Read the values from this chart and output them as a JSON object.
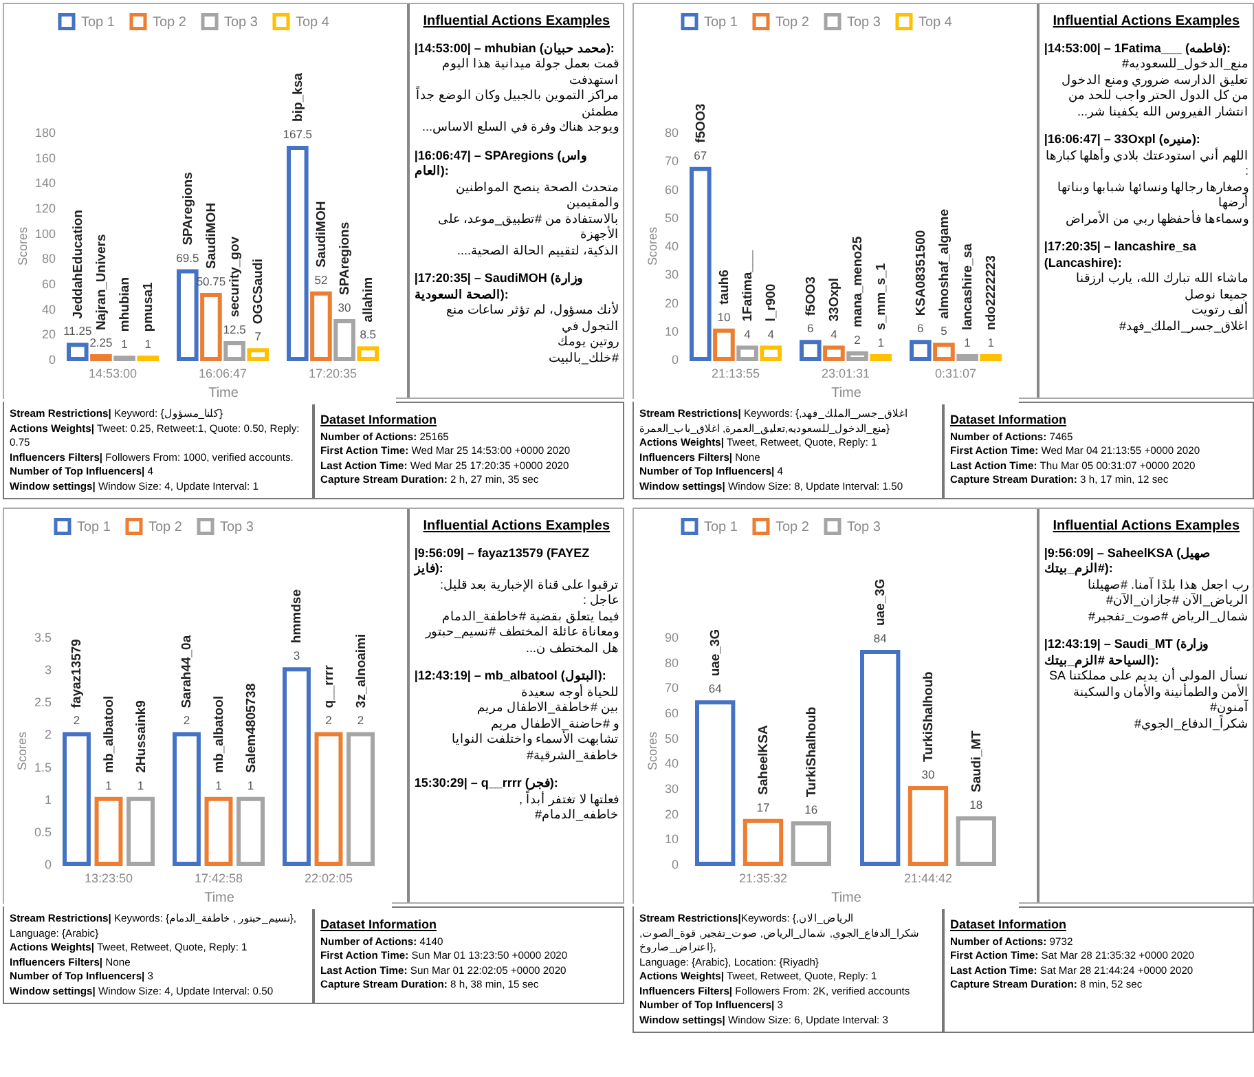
{
  "chart_data": [
    {
      "type": "bar",
      "categories": [
        "14:53:00",
        "16:06:47",
        "17:20:35"
      ],
      "xlabel": "Time",
      "ylabel": "Scores",
      "ylim": [
        0,
        180
      ],
      "yticks": [
        0,
        20,
        40,
        60,
        80,
        100,
        120,
        140,
        160,
        180
      ],
      "legend": "top",
      "data_labels": true,
      "series": [
        {
          "name": "Top 1",
          "color": "#4472c4",
          "values": [
            11.25,
            69.5,
            167.5
          ]
        },
        {
          "name": "Top 2",
          "color": "#ed7d31",
          "values": [
            2.25,
            50.75,
            52
          ]
        },
        {
          "name": "Top 3",
          "color": "#a5a5a5",
          "values": [
            1,
            12.5,
            30
          ]
        },
        {
          "name": "Top 4",
          "color": "#ffc000",
          "values": [
            1,
            7,
            8.5
          ]
        }
      ],
      "annotations": [
        "JeddahEducation",
        "Najran_Univers",
        "mhubian",
        "pmusa1",
        "SPAregions",
        "SaudiMOH",
        "security_gov",
        "OGCSaudi",
        "bip_ksa",
        "SaudiMOH",
        "SPAregions",
        "allahim"
      ]
    },
    {
      "type": "other",
      "title": "Influential Actions Examples",
      "annotations": [
        "|14:53:00| – mhubian (محمد حبيان):\nقمت بعمل جولة ميدانية هذا اليوم استهدفت\nمراكز التموين بالجبيل وكان الوضع جداً مطمئن\nويوجد هناك وفرة في السلع الاساس...",
        "|16:06:47| – SPAregions (واس العام):\nمتحدث الصحة ينصح المواطنين والمقيمين\nبالاستفادة من #تطبيق_موعد، على الأجهزة\nالذكية، لتقييم الحالة الصحية....",
        "|17:20:35| – SaudiMOH (وزارة الصحة السعودية):\nلأنك مسؤول، لم تؤثر ساعات منع التجول في\nروتين يومك\n#خلك_بالبيت"
      ]
    },
    {
      "type": "other",
      "annotations": [
        "Stream Restrictions| Keyword: {كلنا_مسؤول}",
        "Actions Weights| Tweet: 0.25, Retweet:1, Quote: 0.50, Reply: 0.75",
        "Influencers Filters| Followers From: 1000, verified accounts.",
        "Number of Top Influencers| 4",
        "Window settings| Window Size: 4, Update Interval: 1"
      ]
    },
    {
      "type": "other",
      "title": "Dataset Information",
      "annotations": [
        "Number of Actions: 25165",
        "First Action Time: Wed Mar 25 14:53:00 +0000 2020",
        "Last Action Time: Wed Mar 25 17:20:35 +0000 2020",
        "Capture Stream Duration: 2 h, 27 min, 35 sec"
      ]
    },
    {
      "type": "bar",
      "categories": [
        "21:13:55",
        "23:01:31",
        "0:31:07"
      ],
      "xlabel": "Time",
      "ylabel": "Scores",
      "ylim": [
        0,
        80
      ],
      "yticks": [
        0,
        10,
        20,
        30,
        40,
        50,
        60,
        70,
        80
      ],
      "legend": "top",
      "data_labels": true,
      "series": [
        {
          "name": "Top 1",
          "color": "#4472c4",
          "values": [
            67,
            6,
            6
          ]
        },
        {
          "name": "Top 2",
          "color": "#ed7d31",
          "values": [
            10,
            4,
            5
          ]
        },
        {
          "name": "Top 3",
          "color": "#a5a5a5",
          "values": [
            4,
            2,
            1
          ]
        },
        {
          "name": "Top 4",
          "color": "#ffc000",
          "values": [
            4,
            1,
            1
          ]
        }
      ],
      "annotations": [
        "f5OO3",
        "tauh6",
        "1Fatima___",
        "l_r900",
        "f5OO3",
        "33Oxpl",
        "mana_meno25",
        "s_mm_s_1",
        "KSA08351500",
        "almoshaf_algame",
        "lancashire_sa",
        "ndo2222223"
      ]
    },
    {
      "type": "other",
      "title": "Influential Actions Examples",
      "annotations": [
        "|14:53:00| – 1Fatima___ (فاطمه):\nمنع_الدخول_للسعوديه#\nتعليق الدارسه ضروري ومنع الدخول\nمن كل الدول الحتر واجب للحد من\nانتشار الفيروس الله يكفينا شر...",
        "|16:06:47| – 33Oxpl (منيره):\nاللهم أني استودعتك بلادي وأهلها كبارها :\nوصغارها رجالها ونسائها شبابها وبناتها أرضها\nوسماءها فأحفظها ربي من الأمراض",
        "|17:20:35| – lancashire_sa (Lancashire):\nماشاء الله تبارك الله، يارب ارزقنا جميعا نوصل\nألف رتويت\nاغلاق_جسر_الملك_فهد#"
      ]
    },
    {
      "type": "other",
      "annotations": [
        "Stream Restrictions| Keywords: {اغلاق_جسر_الملك_فهد, منع_الدخول_للسعوديه,تعليق_العمرة, اغلاق_باب_العمرة}",
        "Actions Weights| Tweet, Retweet, Quote, Reply: 1",
        "Influencers Filters| None",
        "Number of Top Influencers| 4",
        "Window settings| Window Size: 8, Update Interval: 1.50"
      ]
    },
    {
      "type": "other",
      "title": "Dataset Information",
      "annotations": [
        "Number of Actions: 7465",
        "First Action Time: Wed Mar 04 21:13:55 +0000 2020",
        "Last Action Time: Thu Mar 05 00:31:07 +0000 2020",
        "Capture Stream Duration: 3 h, 17 min, 12 sec"
      ]
    },
    {
      "type": "bar",
      "categories": [
        "13:23:50",
        "17:42:58",
        "22:02:05"
      ],
      "xlabel": "Time",
      "ylabel": "Scores",
      "ylim": [
        0,
        3.5
      ],
      "yticks": [
        0,
        0.5,
        1,
        1.5,
        2,
        2.5,
        3,
        3.5
      ],
      "legend": "top",
      "data_labels": true,
      "series": [
        {
          "name": "Top 1",
          "color": "#4472c4",
          "values": [
            2,
            2,
            3
          ]
        },
        {
          "name": "Top 2",
          "color": "#ed7d31",
          "values": [
            1,
            1,
            2
          ]
        },
        {
          "name": "Top 3",
          "color": "#a5a5a5",
          "values": [
            1,
            1,
            2
          ]
        }
      ],
      "annotations": [
        "fayaz13579",
        "mb_albatool",
        "2Hussaink9",
        "Sarah44_0a",
        "mb_albatool",
        "Salem4805738",
        "hmmdse",
        "q__rrrr",
        "3z_alnoaimi"
      ]
    },
    {
      "type": "other",
      "title": "Influential Actions Examples",
      "annotations": [
        "|9:56:09| – fayaz13579 (FAYEZ فايز):\nترقبوا على قناة الإخبارية بعد قليل: عاجل :\nفيما يتعلق بقضية #خاطفة_الدمام\nومعاناة عائلة المختطف #نسيم_حبتور\nهل المختطف ن...",
        "|12:43:19| – mb_albatool (البتول):\nللحياة أوجه سعيدة\nبين #خاطفة_الاطفال مريم\nو #حاضنة_الاطفال مريم\nتشابهت الأسماء واختلفت النوايا\nخاطفة_الشرقية#",
        "15:30:29| – q__rrrr (فجر):\nفعلتها لا تغتفر أبداً ,\nخاطفه_الدمام#"
      ]
    },
    {
      "type": "other",
      "annotations": [
        "Stream Restrictions| Keywords: {نسيم_حبتور , خاطفة_الدمام},",
        "Language: {Arabic}",
        "Actions Weights| Tweet, Retweet, Quote, Reply: 1",
        "Influencers Filters| None",
        "Number of Top Influencers| 3",
        "Window settings| Window Size: 4, Update Interval: 0.50"
      ]
    },
    {
      "type": "other",
      "title": "Dataset Information",
      "annotations": [
        "Number of Actions: 4140",
        "First Action Time: Sun Mar 01 13:23:50 +0000 2020",
        "Last Action Time: Sun Mar 01 22:02:05 +0000 2020",
        "Capture Stream Duration: 8 h, 38 min, 15 sec"
      ]
    },
    {
      "type": "bar",
      "categories": [
        "21:35:32",
        "21:44:42"
      ],
      "xlabel": "Time",
      "ylabel": "Scores",
      "ylim": [
        0,
        90
      ],
      "yticks": [
        0,
        10,
        20,
        30,
        40,
        50,
        60,
        70,
        80,
        90
      ],
      "legend": "top",
      "data_labels": true,
      "series": [
        {
          "name": "Top 1",
          "color": "#4472c4",
          "values": [
            64,
            84
          ]
        },
        {
          "name": "Top 2",
          "color": "#ed7d31",
          "values": [
            17,
            30
          ]
        },
        {
          "name": "Top 3",
          "color": "#a5a5a5",
          "values": [
            16,
            18
          ]
        }
      ],
      "annotations": [
        "uae_3G",
        "SaheelKSA",
        "TurkiShalhoub",
        "uae_3G",
        "TurkiShalhoub",
        "Saudi_MT"
      ]
    },
    {
      "type": "other",
      "title": "Influential Actions Examples",
      "annotations": [
        "|9:56:09| – SaheelKSA (صهيل #الزم_بيتك):\nرب اجعل هذا بلدًا آمنا. #صهيلنا\nالرياض_الآن #جازان_الآن#\nشمال_الرياض #صوت_تفجير#",
        "|12:43:19| – Saudi_MT (وزارة السياحة #الزم_بيتك):\nنسأل المولى أن يديم على مملكتنا SA\nالأمن والطمأنينة والأمان والسكينة\nآمنون#\nشكراً_الدفاع_الجوي#"
      ]
    },
    {
      "type": "other",
      "annotations": [
        "Stream Restrictions|Keywords: {الرياض_الان, شكرا_الدفاع_الجوي, شمال_الرياض, صوت_تفجير, قوة_الصوت, اعتراض_صاروخ},",
        "Language: {Arabic}, Location: {Riyadh}",
        "Actions Weights| Tweet, Retweet, Quote, Reply: 1",
        "Influencers Filters| Followers From: 2K, verified accounts",
        "Number of Top Influencers| 3",
        "Window settings| Window Size: 6, Update Interval: 3"
      ]
    },
    {
      "type": "other",
      "title": "Dataset Information",
      "annotations": [
        "Number of Actions: 9732",
        "First Action Time: Sat Mar 28 21:35:32 +0000 2020",
        "Last Action Time: Sat Mar 28 21:44:24 +0000 2020",
        "Capture Stream Duration: 8 min, 52 sec"
      ]
    }
  ]
}
